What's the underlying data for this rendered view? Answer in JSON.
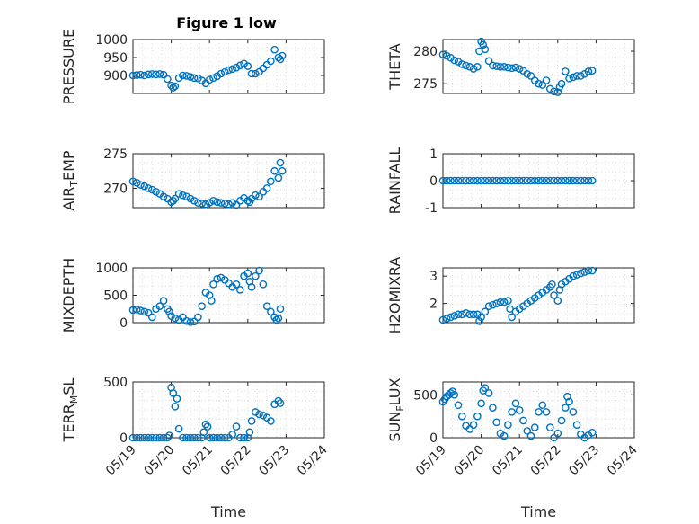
{
  "title": "Figure 1 low",
  "xlabel": "Time",
  "x_ticklabels": [
    "05/19",
    "05/20",
    "05/21",
    "05/22",
    "05/23",
    "05/24"
  ],
  "marker_color": "#0072BD",
  "chart_data": [
    {
      "type": "scatter",
      "ylabel": "PRESSURE",
      "ylim": [
        850,
        1000
      ],
      "yticks": [
        900,
        950,
        1000
      ],
      "xlim": [
        0,
        5
      ],
      "x": [
        0,
        0.1,
        0.2,
        0.3,
        0.4,
        0.5,
        0.6,
        0.7,
        0.8,
        0.9,
        1.0,
        1.05,
        1.1,
        1.2,
        1.3,
        1.4,
        1.5,
        1.6,
        1.7,
        1.8,
        1.9,
        2.0,
        2.1,
        2.2,
        2.3,
        2.4,
        2.5,
        2.6,
        2.7,
        2.8,
        2.9,
        3.0,
        3.1,
        3.2,
        3.3,
        3.4,
        3.5,
        3.6,
        3.7,
        3.8,
        3.85,
        3.9
      ],
      "y": [
        900,
        901,
        902,
        900,
        903,
        904,
        903,
        904,
        902,
        890,
        872,
        866,
        870,
        893,
        900,
        899,
        896,
        893,
        892,
        886,
        878,
        888,
        893,
        898,
        905,
        910,
        915,
        918,
        922,
        928,
        933,
        926,
        905,
        905,
        910,
        920,
        930,
        940,
        972,
        950,
        945,
        955
      ]
    },
    {
      "type": "scatter",
      "ylabel": "THETA",
      "ylim": [
        273.5,
        281.8
      ],
      "yticks": [
        275,
        280
      ],
      "xlim": [
        0,
        5
      ],
      "x": [
        0,
        0.1,
        0.2,
        0.3,
        0.4,
        0.5,
        0.6,
        0.7,
        0.8,
        0.9,
        0.95,
        1.0,
        1.05,
        1.1,
        1.2,
        1.3,
        1.4,
        1.5,
        1.6,
        1.7,
        1.8,
        1.9,
        2.0,
        2.1,
        2.2,
        2.3,
        2.4,
        2.5,
        2.6,
        2.7,
        2.8,
        2.9,
        3.0,
        3.05,
        3.1,
        3.2,
        3.3,
        3.4,
        3.5,
        3.6,
        3.7,
        3.8,
        3.9
      ],
      "y": [
        279.5,
        279.3,
        279.0,
        278.6,
        278.4,
        278.0,
        277.8,
        277.6,
        277.3,
        277.6,
        280.0,
        281.5,
        281.0,
        280.3,
        278.5,
        277.8,
        277.7,
        277.6,
        277.6,
        277.5,
        277.4,
        277.5,
        277.3,
        277.0,
        276.5,
        276.2,
        275.5,
        275.0,
        274.8,
        275.5,
        274.2,
        273.8,
        273.7,
        274.5,
        275.0,
        276.9,
        275.8,
        276.0,
        276.2,
        276.2,
        276.5,
        276.9,
        277.0
      ]
    },
    {
      "type": "scatter",
      "ylabel": "AIR_TEMP",
      "ylim": [
        267.2,
        275
      ],
      "yticks": [
        270,
        275
      ],
      "xlim": [
        0,
        5
      ],
      "x": [
        0,
        0.1,
        0.2,
        0.3,
        0.4,
        0.5,
        0.6,
        0.7,
        0.8,
        0.9,
        1.0,
        1.05,
        1.1,
        1.2,
        1.3,
        1.4,
        1.5,
        1.6,
        1.7,
        1.8,
        1.9,
        2.0,
        2.1,
        2.2,
        2.3,
        2.4,
        2.5,
        2.6,
        2.7,
        2.8,
        2.9,
        3.0,
        3.05,
        3.1,
        3.2,
        3.3,
        3.4,
        3.5,
        3.6,
        3.7,
        3.8,
        3.85,
        3.9
      ],
      "y": [
        271.0,
        270.8,
        270.5,
        270.3,
        270.0,
        269.8,
        269.5,
        269.2,
        268.8,
        268.5,
        268.0,
        268.2,
        268.5,
        269.2,
        269.0,
        268.8,
        268.5,
        268.2,
        267.9,
        267.8,
        267.7,
        267.9,
        268.2,
        268.0,
        267.9,
        267.8,
        267.7,
        267.9,
        267.6,
        268.2,
        268.6,
        268.2,
        268.0,
        268.5,
        269.0,
        268.8,
        269.5,
        270.0,
        271.0,
        272.5,
        271.5,
        273.7,
        272.5
      ]
    },
    {
      "type": "scatter",
      "ylabel": "RAINFALL",
      "ylim": [
        -1,
        1
      ],
      "yticks": [
        -1,
        0,
        1
      ],
      "xlim": [
        0,
        5
      ],
      "x": [
        0,
        0.1,
        0.2,
        0.3,
        0.4,
        0.5,
        0.6,
        0.7,
        0.8,
        0.9,
        1.0,
        1.1,
        1.2,
        1.3,
        1.4,
        1.5,
        1.6,
        1.7,
        1.8,
        1.9,
        2.0,
        2.1,
        2.2,
        2.3,
        2.4,
        2.5,
        2.6,
        2.7,
        2.8,
        2.9,
        3.0,
        3.1,
        3.2,
        3.3,
        3.4,
        3.5,
        3.6,
        3.7,
        3.8,
        3.9
      ],
      "y": [
        0,
        0,
        0,
        0,
        0,
        0,
        0,
        0,
        0,
        0,
        0,
        0,
        0,
        0,
        0,
        0,
        0,
        0,
        0,
        0,
        0,
        0,
        0,
        0,
        0,
        0,
        0,
        0,
        0,
        0,
        0,
        0,
        0,
        0,
        0,
        0,
        0,
        0,
        0,
        0
      ]
    },
    {
      "type": "scatter",
      "ylabel": "MIXDEPTH",
      "ylim": [
        0,
        1000
      ],
      "yticks": [
        0,
        500,
        1000
      ],
      "xlim": [
        0,
        5
      ],
      "x": [
        0,
        0.1,
        0.2,
        0.3,
        0.4,
        0.5,
        0.6,
        0.7,
        0.8,
        0.9,
        0.95,
        1.0,
        1.1,
        1.2,
        1.3,
        1.4,
        1.5,
        1.6,
        1.7,
        1.8,
        1.9,
        2.0,
        2.05,
        2.1,
        2.2,
        2.3,
        2.4,
        2.5,
        2.6,
        2.7,
        2.8,
        2.9,
        3.0,
        3.05,
        3.1,
        3.2,
        3.3,
        3.4,
        3.5,
        3.6,
        3.7,
        3.75,
        3.8,
        3.85
      ],
      "y": [
        230,
        240,
        220,
        200,
        180,
        100,
        250,
        300,
        400,
        250,
        200,
        120,
        80,
        50,
        100,
        30,
        10,
        20,
        100,
        300,
        550,
        500,
        400,
        700,
        800,
        820,
        780,
        720,
        650,
        700,
        600,
        850,
        900,
        750,
        650,
        850,
        950,
        700,
        300,
        200,
        100,
        50,
        80,
        250
      ]
    },
    {
      "type": "scatter",
      "ylabel": "H2OMIXRA",
      "ylim": [
        1.3,
        3.3
      ],
      "yticks": [
        2,
        3
      ],
      "xlim": [
        0,
        5
      ],
      "x": [
        0,
        0.1,
        0.2,
        0.3,
        0.4,
        0.5,
        0.6,
        0.7,
        0.8,
        0.9,
        0.95,
        1.0,
        1.1,
        1.2,
        1.3,
        1.4,
        1.5,
        1.6,
        1.7,
        1.75,
        1.8,
        1.9,
        2.0,
        2.1,
        2.2,
        2.3,
        2.4,
        2.5,
        2.6,
        2.7,
        2.8,
        2.85,
        2.9,
        3.0,
        3.05,
        3.1,
        3.2,
        3.3,
        3.4,
        3.5,
        3.6,
        3.7,
        3.8,
        3.9
      ],
      "y": [
        1.4,
        1.45,
        1.5,
        1.55,
        1.6,
        1.6,
        1.65,
        1.6,
        1.6,
        1.6,
        1.35,
        1.5,
        1.7,
        1.9,
        1.95,
        2.0,
        2.05,
        2.05,
        2.1,
        1.8,
        1.5,
        1.7,
        1.8,
        1.9,
        2.0,
        2.1,
        2.2,
        2.3,
        2.4,
        2.5,
        2.6,
        2.7,
        2.3,
        2.1,
        2.5,
        2.7,
        2.8,
        2.9,
        3.0,
        3.05,
        3.1,
        3.15,
        3.2,
        3.2
      ]
    },
    {
      "type": "scatter",
      "ylabel": "TERR_MSL",
      "ylim": [
        0,
        500
      ],
      "yticks": [
        0,
        500
      ],
      "xlim": [
        0,
        5
      ],
      "x": [
        0,
        0.1,
        0.2,
        0.3,
        0.4,
        0.5,
        0.6,
        0.7,
        0.8,
        0.9,
        0.95,
        1.0,
        1.05,
        1.1,
        1.15,
        1.2,
        1.3,
        1.4,
        1.5,
        1.6,
        1.7,
        1.8,
        1.85,
        1.9,
        1.95,
        2.0,
        2.1,
        2.2,
        2.3,
        2.4,
        2.5,
        2.6,
        2.7,
        2.8,
        2.9,
        3.0,
        3.05,
        3.1,
        3.2,
        3.3,
        3.4,
        3.5,
        3.6,
        3.7,
        3.8,
        3.85
      ],
      "y": [
        0,
        0,
        0,
        0,
        0,
        0,
        0,
        0,
        0,
        0,
        20,
        450,
        400,
        280,
        350,
        80,
        0,
        0,
        0,
        0,
        0,
        0,
        50,
        120,
        100,
        0,
        0,
        0,
        0,
        0,
        0,
        30,
        100,
        0,
        0,
        0,
        50,
        150,
        230,
        210,
        200,
        180,
        150,
        300,
        330,
        310
      ]
    },
    {
      "type": "scatter",
      "ylabel": "SUN_FLUX",
      "ylim": [
        0,
        650
      ],
      "yticks": [
        0,
        500
      ],
      "xlim": [
        0,
        5
      ],
      "x": [
        0,
        0.05,
        0.1,
        0.15,
        0.2,
        0.25,
        0.3,
        0.4,
        0.5,
        0.6,
        0.7,
        0.8,
        0.9,
        1.0,
        1.05,
        1.1,
        1.2,
        1.3,
        1.4,
        1.5,
        1.6,
        1.7,
        1.8,
        1.9,
        2.0,
        2.1,
        2.2,
        2.3,
        2.4,
        2.5,
        2.6,
        2.7,
        2.8,
        2.9,
        3.0,
        3.1,
        3.2,
        3.25,
        3.3,
        3.4,
        3.5,
        3.6,
        3.7,
        3.8,
        3.9
      ],
      "y": [
        420,
        450,
        480,
        500,
        520,
        540,
        500,
        380,
        250,
        140,
        100,
        150,
        250,
        400,
        550,
        580,
        520,
        350,
        180,
        50,
        20,
        150,
        300,
        400,
        320,
        200,
        80,
        20,
        120,
        300,
        380,
        300,
        120,
        0,
        50,
        200,
        350,
        480,
        420,
        300,
        150,
        40,
        0,
        30,
        60
      ]
    }
  ]
}
